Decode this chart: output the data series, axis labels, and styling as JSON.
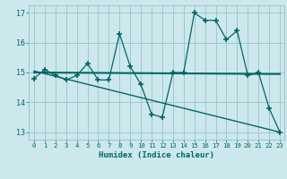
{
  "xlabel": "Humidex (Indice chaleur)",
  "bg_color": "#cde8ec",
  "grid_color": "#9ec8cf",
  "line_color": "#006666",
  "xlim": [
    -0.5,
    23.4
  ],
  "ylim": [
    12.75,
    17.25
  ],
  "yticks": [
    13,
    14,
    15,
    16,
    17
  ],
  "xticks": [
    0,
    1,
    2,
    3,
    4,
    5,
    6,
    7,
    8,
    9,
    10,
    11,
    12,
    13,
    14,
    15,
    16,
    17,
    18,
    19,
    20,
    21,
    22,
    23
  ],
  "main_series": [
    [
      0,
      14.8
    ],
    [
      1,
      15.1
    ],
    [
      2,
      14.9
    ],
    [
      3,
      14.75
    ],
    [
      4,
      14.9
    ],
    [
      5,
      15.3
    ],
    [
      6,
      14.75
    ],
    [
      7,
      14.75
    ],
    [
      8,
      16.3
    ],
    [
      9,
      15.2
    ],
    [
      10,
      14.6
    ],
    [
      11,
      13.6
    ],
    [
      12,
      13.5
    ],
    [
      13,
      15.0
    ],
    [
      14,
      15.0
    ],
    [
      15,
      17.0
    ],
    [
      16,
      16.75
    ],
    [
      17,
      16.75
    ],
    [
      18,
      16.1
    ],
    [
      19,
      16.4
    ],
    [
      20,
      14.9
    ],
    [
      21,
      15.0
    ],
    [
      22,
      13.8
    ],
    [
      23,
      13.0
    ]
  ],
  "trend_line_x": [
    0,
    23
  ],
  "trend_line_y": [
    15.0,
    14.95
  ],
  "regression_line_x": [
    0,
    23
  ],
  "regression_line_y": [
    15.05,
    13.0
  ]
}
